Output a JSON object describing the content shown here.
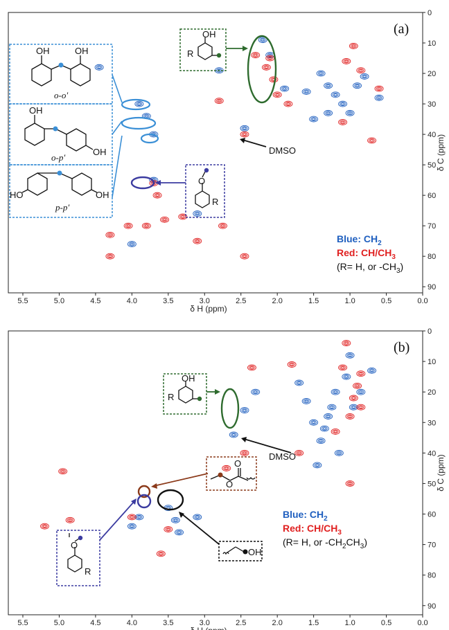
{
  "colors": {
    "blue": "#1f5fbf",
    "red": "#e02020",
    "green": "#2e6b2e",
    "purple": "#3b3ba0",
    "brown": "#8b3a1a",
    "lightblue": "#3a8fd6"
  },
  "chart_data": [
    {
      "type": "scatter",
      "panel_label": "(a)",
      "xlabel": "δ H (ppm)",
      "ylabel": "δ C (ppm)",
      "xlim": [
        5.7,
        0.0
      ],
      "ylim": [
        0,
        92
      ],
      "x_reversed": true,
      "y_reversed": true,
      "xticks": [
        "5.5",
        "5.0",
        "4.5",
        "4.0",
        "3.5",
        "3.0",
        "2.5",
        "2.0",
        "1.5",
        "1.0",
        "0.5",
        "0.0"
      ],
      "yticks": [
        "0",
        "10",
        "20",
        "30",
        "40",
        "50",
        "60",
        "70",
        "80",
        "90"
      ],
      "series": [
        {
          "name": "Blue: CH2",
          "color": "#1f5fbf",
          "points": [
            [
              3.9,
              30
            ],
            [
              3.8,
              34
            ],
            [
              3.7,
              40
            ],
            [
              2.2,
              9
            ],
            [
              2.1,
              14
            ],
            [
              1.4,
              20
            ],
            [
              1.3,
              24
            ],
            [
              1.2,
              27
            ],
            [
              1.5,
              35
            ],
            [
              1.1,
              30
            ],
            [
              0.9,
              24
            ],
            [
              1.6,
              26
            ],
            [
              1.0,
              33
            ],
            [
              0.8,
              21
            ],
            [
              2.45,
              38
            ],
            [
              3.7,
              55
            ],
            [
              3.1,
              66
            ],
            [
              4.0,
              76
            ],
            [
              4.45,
              18
            ],
            [
              2.8,
              19
            ],
            [
              1.9,
              25
            ],
            [
              0.6,
              28
            ],
            [
              1.3,
              33
            ]
          ]
        },
        {
          "name": "Red: CH/CH3",
          "color": "#e02020",
          "points": [
            [
              2.1,
              15
            ],
            [
              2.15,
              18
            ],
            [
              2.05,
              22
            ],
            [
              2.3,
              14
            ],
            [
              2.0,
              27
            ],
            [
              1.85,
              30
            ],
            [
              2.45,
              40
            ],
            [
              3.7,
              56
            ],
            [
              3.65,
              60
            ],
            [
              3.3,
              67
            ],
            [
              3.1,
              75
            ],
            [
              4.3,
              73
            ],
            [
              4.3,
              80
            ],
            [
              2.45,
              80
            ],
            [
              0.85,
              19
            ],
            [
              0.95,
              11
            ],
            [
              1.05,
              16
            ],
            [
              1.1,
              36
            ],
            [
              0.7,
              42
            ],
            [
              3.55,
              68
            ],
            [
              3.8,
              70
            ],
            [
              4.05,
              70
            ],
            [
              2.75,
              70
            ],
            [
              2.8,
              29
            ],
            [
              0.6,
              25
            ]
          ]
        }
      ],
      "annotations": [
        {
          "text": "o-o′",
          "type": "structure_label"
        },
        {
          "text": "o-p′",
          "type": "structure_label"
        },
        {
          "text": "p-p′",
          "type": "structure_label"
        },
        {
          "text": "DMSO",
          "type": "arrow_label"
        }
      ],
      "legend": {
        "blue": "Blue: CH",
        "blue_sub": "2",
        "red": "Red: CH/CH",
        "red_sub": "3",
        "note": "(R= H, or -CH",
        "note_sub": "3",
        "note_end": ")"
      },
      "atoms": {
        "oh": "OH",
        "ho": "HO",
        "r": "R",
        "o": "O"
      }
    },
    {
      "type": "scatter",
      "panel_label": "(b)",
      "xlabel": "δ H (ppm)",
      "ylabel": "δ C (ppm)",
      "xlim": [
        5.7,
        0.0
      ],
      "ylim": [
        0,
        93
      ],
      "x_reversed": true,
      "y_reversed": true,
      "xticks": [
        "5.5",
        "5.0",
        "4.5",
        "4.0",
        "3.5",
        "3.0",
        "2.5",
        "2.0",
        "1.5",
        "1.0",
        "0.5",
        "0.0"
      ],
      "yticks": [
        "0",
        "10",
        "20",
        "30",
        "40",
        "50",
        "60",
        "70",
        "80",
        "90"
      ],
      "series": [
        {
          "name": "Blue: CH2",
          "color": "#1f5fbf",
          "points": [
            [
              1.3,
              28
            ],
            [
              1.35,
              32
            ],
            [
              1.4,
              36
            ],
            [
              1.25,
              25
            ],
            [
              1.2,
              20
            ],
            [
              1.15,
              40
            ],
            [
              1.05,
              15
            ],
            [
              0.95,
              25
            ],
            [
              0.85,
              20
            ],
            [
              1.5,
              30
            ],
            [
              1.6,
              23
            ],
            [
              1.45,
              44
            ],
            [
              0.7,
              13
            ],
            [
              2.3,
              20
            ],
            [
              2.45,
              26
            ],
            [
              3.4,
              62
            ],
            [
              3.35,
              66
            ],
            [
              3.5,
              58
            ],
            [
              4.0,
              64
            ],
            [
              3.9,
              61
            ],
            [
              3.1,
              61
            ],
            [
              2.6,
              34
            ],
            [
              1.7,
              17
            ],
            [
              1.0,
              8
            ]
          ]
        },
        {
          "name": "Red: CH/CH3",
          "color": "#e02020",
          "points": [
            [
              0.85,
              14
            ],
            [
              0.9,
              18
            ],
            [
              0.95,
              22
            ],
            [
              0.85,
              25
            ],
            [
              1.0,
              28
            ],
            [
              1.05,
              4
            ],
            [
              1.1,
              12
            ],
            [
              1.2,
              33
            ],
            [
              1.0,
              50
            ],
            [
              2.45,
              40
            ],
            [
              4.0,
              61
            ],
            [
              3.5,
              65
            ],
            [
              2.35,
              12
            ],
            [
              2.7,
              45
            ],
            [
              3.6,
              73
            ],
            [
              4.85,
              62
            ],
            [
              4.95,
              46
            ],
            [
              5.2,
              64
            ],
            [
              1.7,
              40
            ],
            [
              1.8,
              11
            ]
          ]
        }
      ],
      "annotations": [
        {
          "text": "DMSO",
          "type": "arrow_label"
        }
      ],
      "legend": {
        "blue": "Blue: CH",
        "blue_sub": "2",
        "red": "Red: CH/CH",
        "red_sub": "3",
        "note": "(R= H, or -CH",
        "note_sub": "2",
        "note_mid": "CH",
        "note_sub2": "3",
        "note_end": ")"
      },
      "atoms": {
        "oh": "OH",
        "r": "R",
        "o": "O"
      }
    }
  ]
}
